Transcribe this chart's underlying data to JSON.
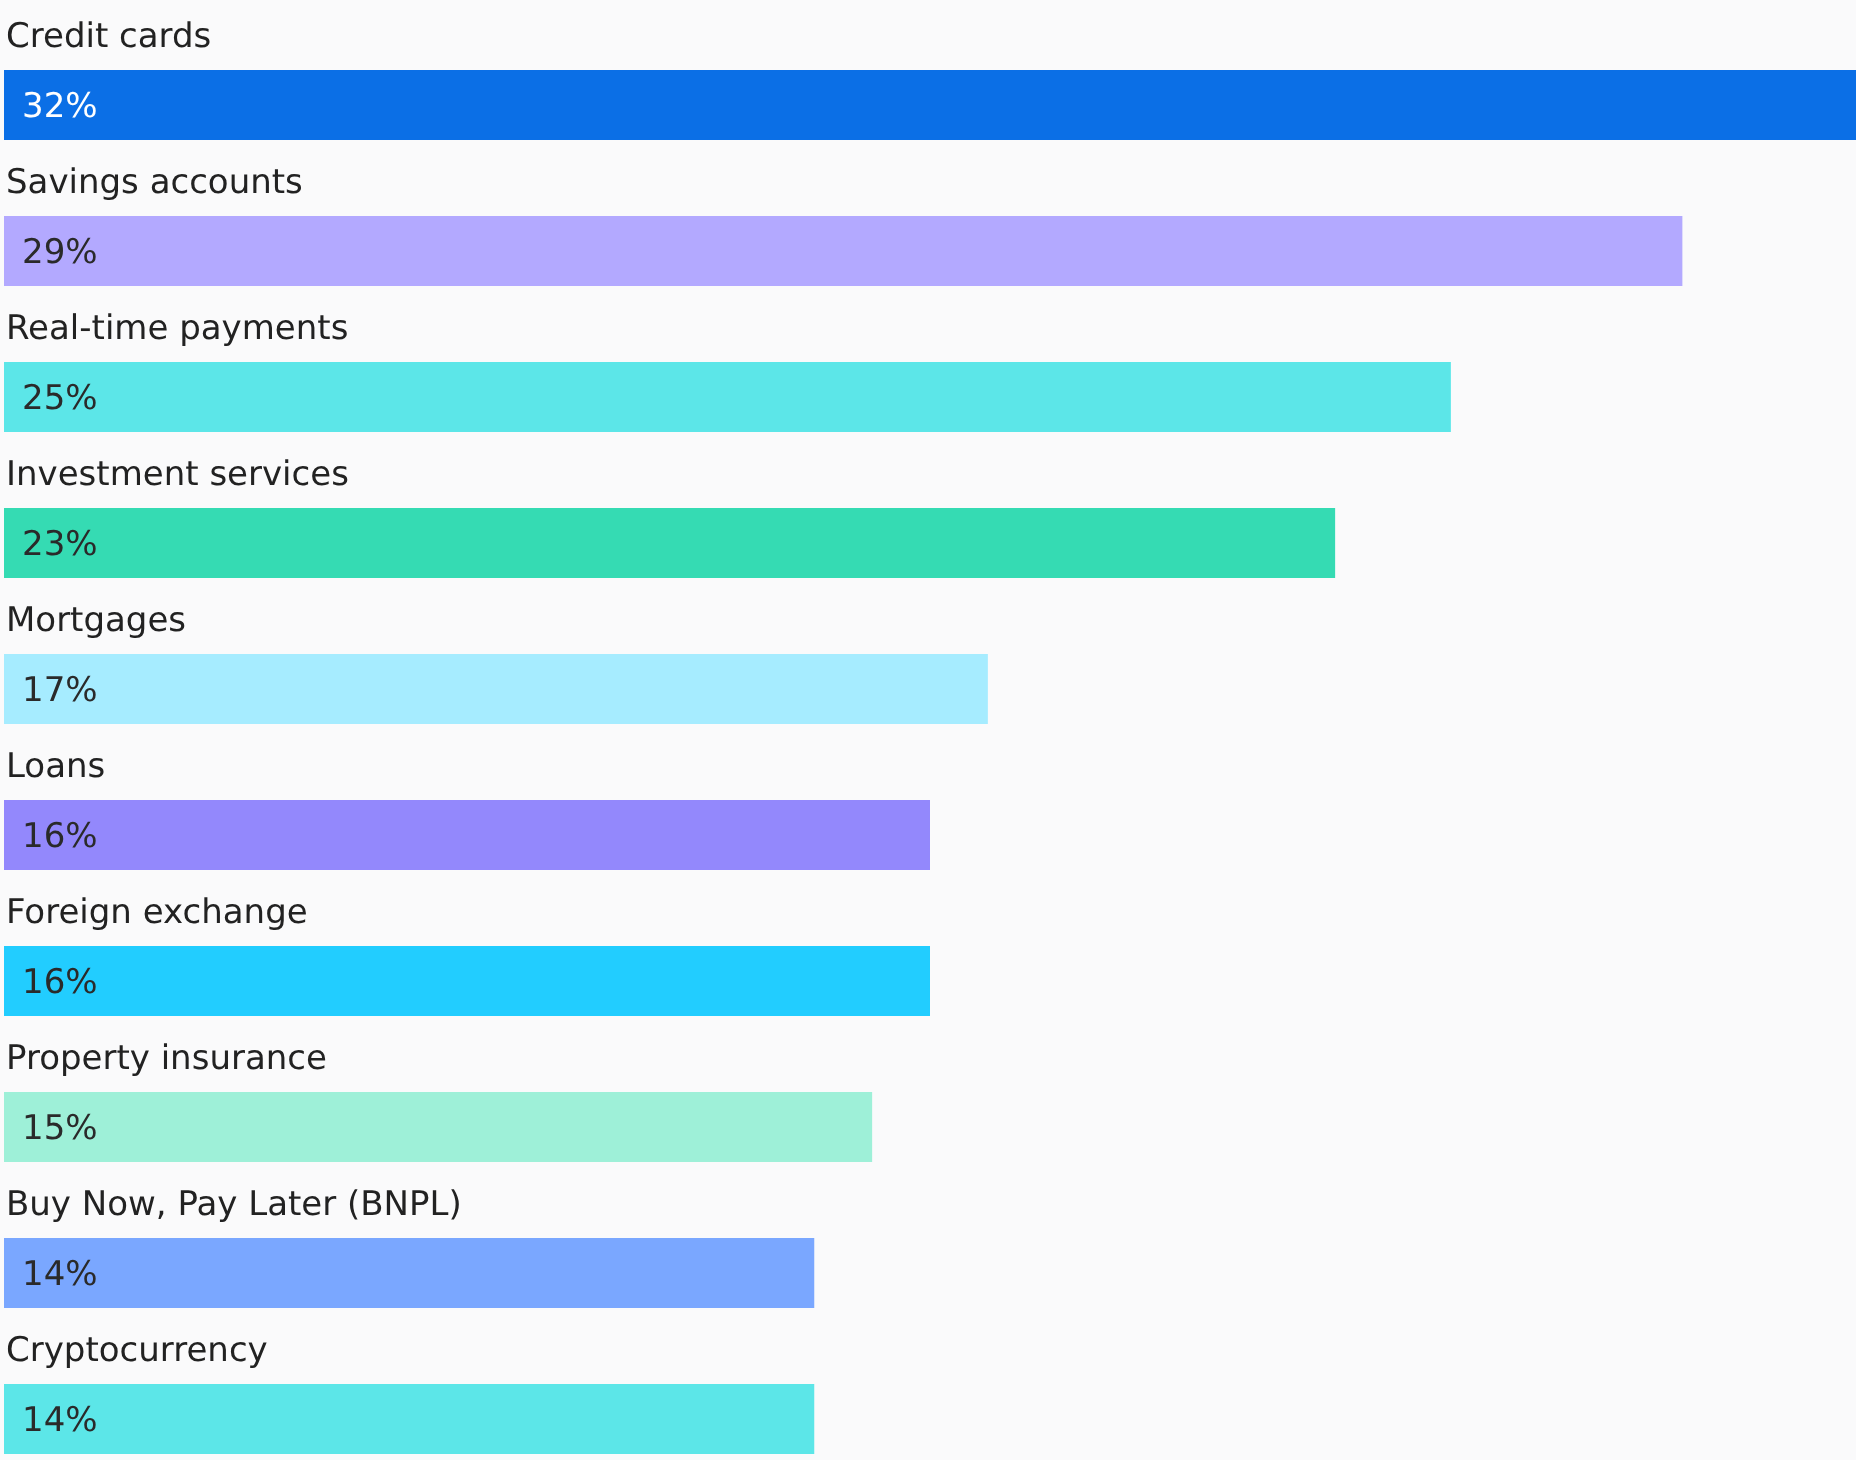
{
  "chart_data": {
    "type": "bar",
    "orientation": "horizontal",
    "data_labels": true,
    "categories": [
      "Credit cards",
      "Savings accounts",
      "Real-time payments",
      "Investment services",
      "Mortgages",
      "Loans",
      "Foreign exchange",
      "Property insurance",
      "Buy Now, Pay Later (BNPL)",
      "Cryptocurrency"
    ],
    "values": [
      32,
      29,
      25,
      23,
      17,
      16,
      16,
      15,
      14,
      14
    ],
    "value_labels": [
      "32%",
      "29%",
      "25%",
      "23%",
      "17%",
      "16%",
      "16%",
      "15%",
      "14%",
      "14%"
    ],
    "colors": [
      "#0b6fe6",
      "#b3a9ff",
      "#5ce6e8",
      "#35dbb3",
      "#a6ecff",
      "#9388fc",
      "#22cdff",
      "#9ef0d8",
      "#7aa7ff",
      "#5ce6e8"
    ]
  }
}
